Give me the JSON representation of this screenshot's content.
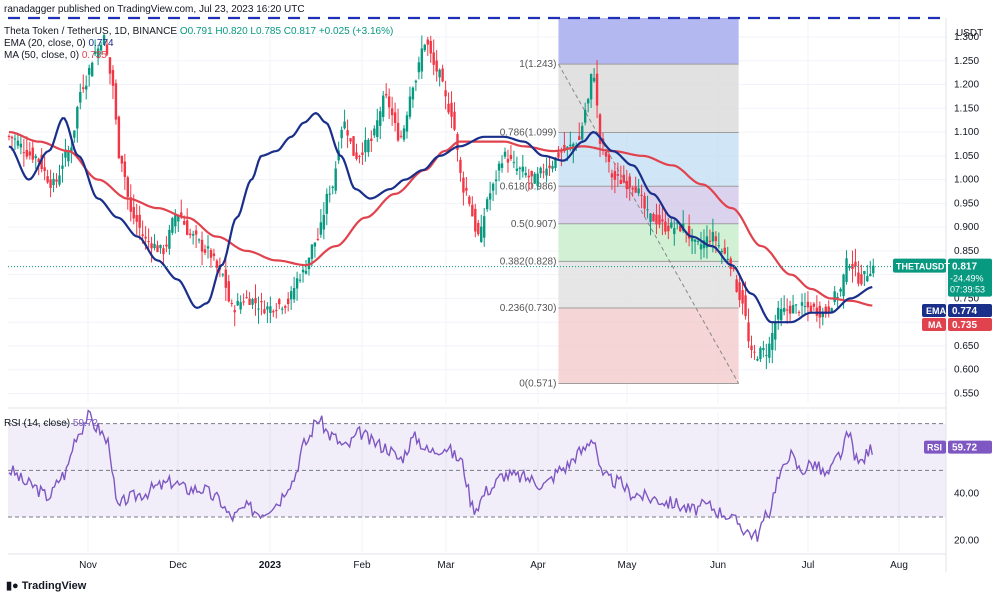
{
  "author": "ranadagger published on TradingView.com, Jul 23, 2023 16:20 UTC",
  "legend": {
    "symbol": "Theta Token / TetherUS, 1D, BINANCE",
    "ohlc": "O0.791 H0.820 L0.785 C0.817 +0.025 (+3.16%)",
    "ema_label": "EMA (20, close, 0)",
    "ema_value": "0.774",
    "ma_label": "MA (50, close, 0)",
    "ma_value": "0.735",
    "rsi_label": "RSI (14, close)",
    "rsi_value": "59.72"
  },
  "brand": "TradingView",
  "colors": {
    "up": "#089981",
    "down": "#f23645",
    "ema": "#1a2f8a",
    "ma": "#e0434d",
    "rsi": "#7e57c2",
    "resistance": "#1e2fb8",
    "grid": "#f0f3fa"
  },
  "chart_data": {
    "type": "candlestick",
    "currency": "USDT",
    "ylim": [
      0.53,
      1.34
    ],
    "price_ticks": [
      "1.300",
      "1.250",
      "1.200",
      "1.150",
      "1.100",
      "1.050",
      "1.000",
      "0.950",
      "0.900",
      "0.850",
      "0.800",
      "0.750",
      "0.700",
      "0.650",
      "0.600",
      "0.550"
    ],
    "x_labels": [
      "Nov",
      "Dec",
      "2023",
      "Feb",
      "Mar",
      "Apr",
      "May",
      "Jun",
      "Jul",
      "Aug"
    ],
    "resistance_line": 1.34,
    "price_tag": {
      "label": "THETAUSDT",
      "value": "0.817",
      "change": "-24.49%",
      "countdown": "07:39:53"
    },
    "ema_tag": {
      "label": "EMA",
      "value": "0.774"
    },
    "ma_tag": {
      "label": "MA",
      "value": "0.735"
    },
    "fib_levels": [
      {
        "label": "1(1.243)",
        "value": 1.243,
        "fill": "#dadada"
      },
      {
        "label": "0.786(1.099)",
        "value": 1.099,
        "fill": "#c4dff3"
      },
      {
        "label": "0.618(0.986)",
        "value": 0.986,
        "fill": "#d2c8ea"
      },
      {
        "label": "0.5(0.907)",
        "value": 0.907,
        "fill": "#c7ecc9"
      },
      {
        "label": "0.382(0.828)",
        "value": 0.828,
        "fill": "#e0e0e0"
      },
      {
        "label": "0.236(0.730)",
        "value": 0.73,
        "fill": "#f3caca"
      },
      {
        "label": "0(0.571)",
        "value": 0.571,
        "fill": null
      }
    ],
    "ema_anchors": [
      [
        0,
        1.07
      ],
      [
        20,
        1.0
      ],
      [
        40,
        1.06
      ],
      [
        55,
        1.13
      ],
      [
        70,
        1.05
      ],
      [
        90,
        0.96
      ],
      [
        110,
        0.92
      ],
      [
        130,
        0.88
      ],
      [
        150,
        0.83
      ],
      [
        170,
        0.79
      ],
      [
        190,
        0.73
      ],
      [
        200,
        0.74
      ],
      [
        215,
        0.82
      ],
      [
        230,
        0.92
      ],
      [
        245,
        1.0
      ],
      [
        255,
        1.05
      ],
      [
        270,
        1.06
      ],
      [
        285,
        1.09
      ],
      [
        298,
        1.12
      ],
      [
        310,
        1.14
      ],
      [
        320,
        1.12
      ],
      [
        335,
        1.05
      ],
      [
        350,
        0.98
      ],
      [
        365,
        0.96
      ],
      [
        385,
        0.98
      ],
      [
        400,
        1.0
      ],
      [
        418,
        1.02
      ],
      [
        435,
        1.05
      ],
      [
        455,
        1.07
      ],
      [
        480,
        1.09
      ],
      [
        500,
        1.09
      ],
      [
        520,
        1.08
      ],
      [
        540,
        1.05
      ],
      [
        560,
        1.04
      ],
      [
        580,
        1.08
      ],
      [
        590,
        1.1
      ],
      [
        610,
        1.06
      ],
      [
        630,
        1.03
      ],
      [
        650,
        0.97
      ],
      [
        670,
        0.92
      ],
      [
        690,
        0.88
      ],
      [
        710,
        0.86
      ],
      [
        730,
        0.82
      ],
      [
        750,
        0.76
      ],
      [
        770,
        0.7
      ],
      [
        790,
        0.7
      ],
      [
        810,
        0.72
      ],
      [
        830,
        0.72
      ],
      [
        850,
        0.75
      ],
      [
        873,
        0.774
      ]
    ],
    "ma_anchors": [
      [
        0,
        1.1
      ],
      [
        30,
        1.08
      ],
      [
        60,
        1.06
      ],
      [
        90,
        1.0
      ],
      [
        120,
        0.96
      ],
      [
        150,
        0.94
      ],
      [
        180,
        0.92
      ],
      [
        210,
        0.88
      ],
      [
        240,
        0.85
      ],
      [
        270,
        0.83
      ],
      [
        300,
        0.82
      ],
      [
        330,
        0.86
      ],
      [
        360,
        0.92
      ],
      [
        390,
        0.97
      ],
      [
        420,
        1.02
      ],
      [
        440,
        1.06
      ],
      [
        455,
        1.08
      ],
      [
        480,
        1.08
      ],
      [
        500,
        1.08
      ],
      [
        520,
        1.07
      ],
      [
        550,
        1.06
      ],
      [
        580,
        1.07
      ],
      [
        610,
        1.06
      ],
      [
        640,
        1.05
      ],
      [
        670,
        1.03
      ],
      [
        700,
        0.99
      ],
      [
        730,
        0.94
      ],
      [
        760,
        0.86
      ],
      [
        790,
        0.8
      ],
      [
        810,
        0.77
      ],
      [
        830,
        0.75
      ],
      [
        850,
        0.745
      ],
      [
        873,
        0.735
      ]
    ],
    "price_anchors": [
      [
        0,
        1.09
      ],
      [
        25,
        1.05
      ],
      [
        45,
        0.99
      ],
      [
        60,
        1.06
      ],
      [
        75,
        1.2
      ],
      [
        88,
        1.27
      ],
      [
        95,
        1.3
      ],
      [
        103,
        1.22
      ],
      [
        112,
        1.05
      ],
      [
        125,
        0.92
      ],
      [
        140,
        0.87
      ],
      [
        155,
        0.85
      ],
      [
        170,
        0.93
      ],
      [
        185,
        0.88
      ],
      [
        200,
        0.85
      ],
      [
        215,
        0.8
      ],
      [
        225,
        0.73
      ],
      [
        240,
        0.75
      ],
      [
        260,
        0.73
      ],
      [
        280,
        0.74
      ],
      [
        295,
        0.8
      ],
      [
        310,
        0.87
      ],
      [
        325,
        0.98
      ],
      [
        338,
        1.12
      ],
      [
        350,
        1.05
      ],
      [
        365,
        1.08
      ],
      [
        380,
        1.17
      ],
      [
        395,
        1.09
      ],
      [
        410,
        1.21
      ],
      [
        420,
        1.29
      ],
      [
        432,
        1.23
      ],
      [
        445,
        1.15
      ],
      [
        460,
        0.98
      ],
      [
        475,
        0.88
      ],
      [
        485,
        0.97
      ],
      [
        500,
        1.05
      ],
      [
        515,
        1.02
      ],
      [
        530,
        1.0
      ],
      [
        545,
        1.03
      ],
      [
        560,
        1.06
      ],
      [
        575,
        1.08
      ],
      [
        583,
        1.15
      ],
      [
        590,
        1.23
      ],
      [
        598,
        1.07
      ],
      [
        612,
        1.0
      ],
      [
        630,
        0.99
      ],
      [
        648,
        0.92
      ],
      [
        665,
        0.9
      ],
      [
        680,
        0.9
      ],
      [
        695,
        0.86
      ],
      [
        710,
        0.88
      ],
      [
        725,
        0.84
      ],
      [
        740,
        0.75
      ],
      [
        750,
        0.63
      ],
      [
        765,
        0.64
      ],
      [
        778,
        0.72
      ],
      [
        793,
        0.73
      ],
      [
        808,
        0.73
      ],
      [
        823,
        0.72
      ],
      [
        838,
        0.76
      ],
      [
        848,
        0.83
      ],
      [
        860,
        0.79
      ],
      [
        873,
        0.817
      ]
    ],
    "rsi_anchors": [
      [
        0,
        50
      ],
      [
        20,
        44
      ],
      [
        40,
        39
      ],
      [
        55,
        48
      ],
      [
        70,
        66
      ],
      [
        80,
        73
      ],
      [
        90,
        68
      ],
      [
        100,
        62
      ],
      [
        110,
        34
      ],
      [
        120,
        38
      ],
      [
        135,
        40
      ],
      [
        150,
        43
      ],
      [
        165,
        45
      ],
      [
        180,
        42
      ],
      [
        195,
        42
      ],
      [
        210,
        38
      ],
      [
        225,
        30
      ],
      [
        240,
        34
      ],
      [
        255,
        32
      ],
      [
        270,
        36
      ],
      [
        285,
        45
      ],
      [
        300,
        62
      ],
      [
        312,
        72
      ],
      [
        325,
        65
      ],
      [
        340,
        60
      ],
      [
        355,
        66
      ],
      [
        368,
        62
      ],
      [
        380,
        60
      ],
      [
        395,
        55
      ],
      [
        410,
        64
      ],
      [
        425,
        58
      ],
      [
        440,
        60
      ],
      [
        455,
        55
      ],
      [
        470,
        34
      ],
      [
        485,
        42
      ],
      [
        500,
        48
      ],
      [
        520,
        47
      ],
      [
        540,
        44
      ],
      [
        560,
        51
      ],
      [
        578,
        58
      ],
      [
        590,
        64
      ],
      [
        600,
        47
      ],
      [
        615,
        45
      ],
      [
        630,
        40
      ],
      [
        650,
        38
      ],
      [
        670,
        36
      ],
      [
        690,
        33
      ],
      [
        705,
        35
      ],
      [
        720,
        32
      ],
      [
        735,
        28
      ],
      [
        745,
        24
      ],
      [
        755,
        22
      ],
      [
        765,
        30
      ],
      [
        778,
        47
      ],
      [
        788,
        57
      ],
      [
        800,
        50
      ],
      [
        812,
        53
      ],
      [
        826,
        48
      ],
      [
        840,
        57
      ],
      [
        848,
        65
      ],
      [
        858,
        53
      ],
      [
        873,
        59.72
      ]
    ],
    "rsi": {
      "ylim": [
        15,
        75
      ],
      "ticks": [
        "20.00",
        "40.00"
      ],
      "upper_band": 70,
      "lower_band": 30,
      "mid": 50
    }
  }
}
